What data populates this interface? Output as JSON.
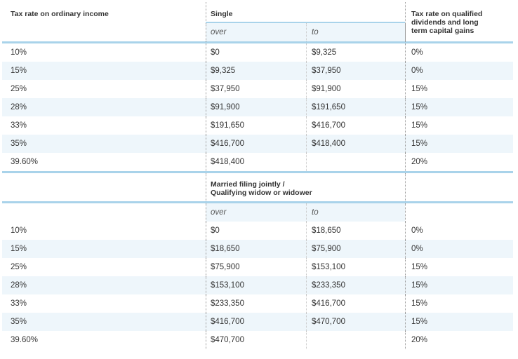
{
  "header": {
    "col0": "Tax rate on ordinary income",
    "single": "Single",
    "col3_line1": "Tax rate on qualified",
    "col3_line2": "dividends and long",
    "col3_line3": "term capital gains",
    "over": "over",
    "to": "to"
  },
  "single_rows": [
    {
      "rate": "10%",
      "over": "$0",
      "to": "$9,325",
      "cg": "0%"
    },
    {
      "rate": "15%",
      "over": "$9,325",
      "to": "$37,950",
      "cg": "0%"
    },
    {
      "rate": "25%",
      "over": "$37,950",
      "to": "$91,900",
      "cg": "15%"
    },
    {
      "rate": "28%",
      "over": "$91,900",
      "to": "$191,650",
      "cg": "15%"
    },
    {
      "rate": "33%",
      "over": "$191,650",
      "to": "$416,700",
      "cg": "15%"
    },
    {
      "rate": "35%",
      "over": "$416,700",
      "to": "$418,400",
      "cg": "15%"
    },
    {
      "rate": "39.60%",
      "over": "$418,400",
      "to": "",
      "cg": "20%"
    }
  ],
  "married_header": {
    "line1": "Married filing jointly /",
    "line2": "Qualifying widow or widower",
    "over": "over",
    "to": "to"
  },
  "married_rows": [
    {
      "rate": "10%",
      "over": "$0",
      "to": "$18,650",
      "cg": "0%"
    },
    {
      "rate": "15%",
      "over": "$18,650",
      "to": "$75,900",
      "cg": "0%"
    },
    {
      "rate": "25%",
      "over": "$75,900",
      "to": "$153,100",
      "cg": "15%"
    },
    {
      "rate": "28%",
      "over": "$153,100",
      "to": "$233,350",
      "cg": "15%"
    },
    {
      "rate": "33%",
      "over": "$233,350",
      "to": "$416,700",
      "cg": "15%"
    },
    {
      "rate": "35%",
      "over": "$416,700",
      "to": "$470,700",
      "cg": "15%"
    },
    {
      "rate": "39.60%",
      "over": "$470,700",
      "to": "",
      "cg": "20%"
    }
  ]
}
